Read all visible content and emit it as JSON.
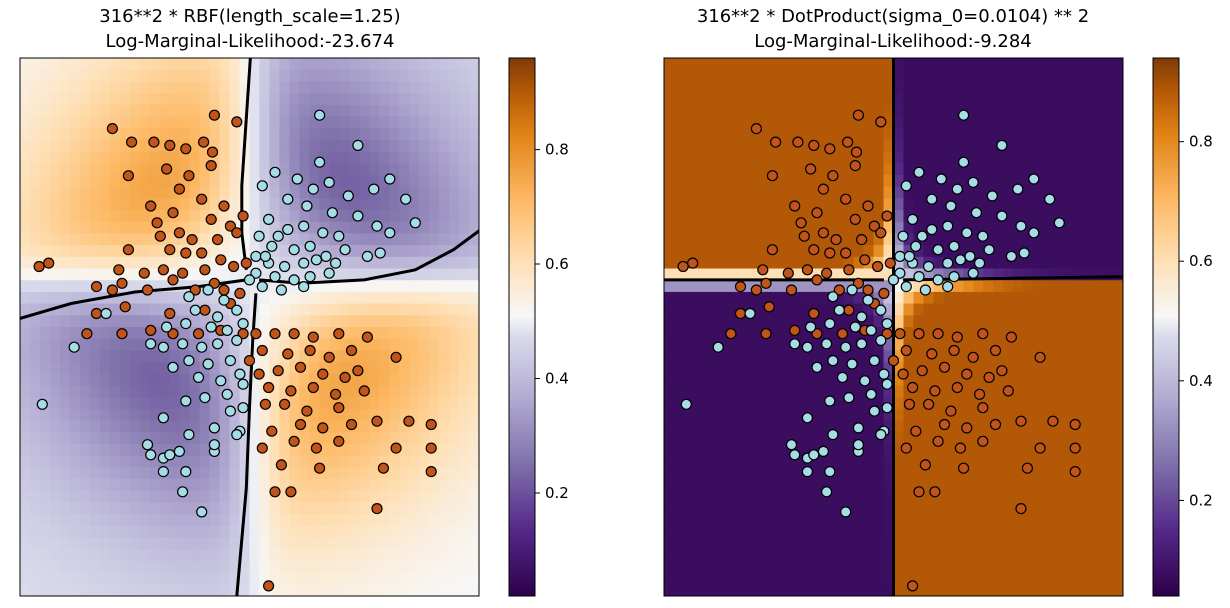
{
  "chart_data": [
    {
      "type": "heatmap",
      "panel": "left",
      "title_line1": "316**2 * RBF(length_scale=1.25)",
      "title_line2": "Log-Marginal-Likelihood:-23.674",
      "kernel": "rbf",
      "grid": false,
      "colorbar": {
        "range": [
          0.02,
          0.96
        ],
        "ticks": [
          0.2,
          0.4,
          0.6,
          0.8
        ],
        "tick_labels": [
          "0.2",
          "0.4",
          "0.6",
          "0.8"
        ]
      },
      "decision_boundary": 0.5,
      "colors": {
        "low": "#2d004b",
        "mid": "#f7f7f7",
        "high": "#7f3b08",
        "class_0_point": "#a6dce6",
        "class_1_point": "#c0541a",
        "boundary": "#000000"
      }
    },
    {
      "type": "heatmap",
      "panel": "right",
      "title_line1": "316**2 * DotProduct(sigma_0=0.0104) ** 2",
      "title_line2": "Log-Marginal-Likelihood:-9.284",
      "kernel": "dotproduct_squared",
      "grid": false,
      "colorbar": {
        "range": [
          0.04,
          0.94
        ],
        "ticks": [
          0.2,
          0.4,
          0.6,
          0.8
        ],
        "tick_labels": [
          "0.2",
          "0.4",
          "0.6",
          "0.8"
        ]
      },
      "decision_boundary": 0.5,
      "colors": {
        "low": "#2d004b",
        "mid": "#f7f7f7",
        "high": "#7f3b08",
        "class_0_point": "#a6dce6",
        "class_1_point": "#c0541a",
        "boundary": "#000000"
      }
    }
  ],
  "points": [
    [
      -2.15,
      2.35,
      1
    ],
    [
      -1.85,
      2.15,
      1
    ],
    [
      -1.5,
      2.15,
      1
    ],
    [
      -1.25,
      2.1,
      1
    ],
    [
      -1.0,
      2.05,
      1
    ],
    [
      -0.72,
      2.15,
      1
    ],
    [
      -0.58,
      2.0,
      1
    ],
    [
      -1.9,
      1.65,
      1
    ],
    [
      -1.3,
      1.75,
      1
    ],
    [
      -0.95,
      1.65,
      1
    ],
    [
      -0.6,
      1.8,
      1
    ],
    [
      -1.1,
      1.45,
      1
    ],
    [
      -0.75,
      1.3,
      1
    ],
    [
      -0.4,
      1.2,
      1
    ],
    [
      -1.55,
      1.2,
      1
    ],
    [
      -1.2,
      1.1,
      1
    ],
    [
      -1.45,
      0.95,
      1
    ],
    [
      -0.6,
      1.0,
      1
    ],
    [
      -0.3,
      0.9,
      1
    ],
    [
      -0.1,
      1.05,
      1
    ],
    [
      -1.4,
      0.75,
      1
    ],
    [
      -1.1,
      0.8,
      1
    ],
    [
      -0.9,
      0.7,
      1
    ],
    [
      -0.5,
      0.7,
      1
    ],
    [
      -0.2,
      0.8,
      1
    ],
    [
      -1.9,
      0.55,
      1
    ],
    [
      -1.25,
      0.55,
      1
    ],
    [
      -1.0,
      0.5,
      1
    ],
    [
      -0.75,
      0.5,
      1
    ],
    [
      -0.45,
      0.4,
      1
    ],
    [
      -3.3,
      0.3,
      1
    ],
    [
      -3.15,
      0.35,
      1
    ],
    [
      -2.05,
      0.25,
      1
    ],
    [
      -1.65,
      0.2,
      1
    ],
    [
      -1.35,
      0.25,
      1
    ],
    [
      -1.05,
      0.2,
      1
    ],
    [
      -0.7,
      0.25,
      1
    ],
    [
      -0.25,
      0.3,
      1
    ],
    [
      -2.4,
      0.0,
      1
    ],
    [
      -2.15,
      -0.05,
      1
    ],
    [
      -2.0,
      0.05,
      1
    ],
    [
      -1.6,
      -0.05,
      1
    ],
    [
      -1.2,
      0.1,
      1
    ],
    [
      -0.85,
      -0.05,
      1
    ],
    [
      -0.55,
      0.05,
      1
    ],
    [
      -0.15,
      -0.1,
      1
    ],
    [
      -2.4,
      -0.4,
      1
    ],
    [
      -1.95,
      -0.3,
      1
    ],
    [
      -1.25,
      -0.4,
      1
    ],
    [
      -0.7,
      -0.35,
      1
    ],
    [
      -0.3,
      -0.25,
      1
    ],
    [
      -2.55,
      -0.7,
      1
    ],
    [
      -2.0,
      -0.7,
      1
    ],
    [
      -1.55,
      -0.65,
      1
    ],
    [
      -1.2,
      -0.7,
      1
    ],
    [
      -0.8,
      -0.7,
      1
    ],
    [
      -0.45,
      -0.65,
      1
    ],
    [
      -0.1,
      -0.7,
      1
    ],
    [
      -0.05,
      0.35,
      1
    ],
    [
      -0.4,
      -0.05,
      1
    ],
    [
      0.1,
      -0.7,
      1
    ],
    [
      0.4,
      -0.7,
      1
    ],
    [
      0.7,
      -0.7,
      1
    ],
    [
      1.0,
      -0.75,
      1
    ],
    [
      1.4,
      -0.7,
      1
    ],
    [
      1.85,
      -0.75,
      1
    ],
    [
      0.2,
      -0.95,
      1
    ],
    [
      0.6,
      -1.0,
      1
    ],
    [
      0.95,
      -0.95,
      1
    ],
    [
      1.25,
      -1.05,
      1
    ],
    [
      1.6,
      -0.95,
      1
    ],
    [
      2.3,
      -1.05,
      1
    ],
    [
      0.15,
      -1.3,
      1
    ],
    [
      0.45,
      -1.25,
      1
    ],
    [
      0.8,
      -1.2,
      1
    ],
    [
      1.15,
      -1.3,
      1
    ],
    [
      1.5,
      -1.35,
      1
    ],
    [
      0.3,
      -1.5,
      1
    ],
    [
      0.65,
      -1.55,
      1
    ],
    [
      1.0,
      -1.5,
      1
    ],
    [
      1.35,
      -1.6,
      1
    ],
    [
      1.8,
      -1.55,
      1
    ],
    [
      0.55,
      -1.75,
      1
    ],
    [
      0.9,
      -1.85,
      1
    ],
    [
      1.4,
      -1.8,
      1
    ],
    [
      0.8,
      -2.05,
      1
    ],
    [
      1.15,
      -2.1,
      1
    ],
    [
      1.6,
      -2.05,
      1
    ],
    [
      2.0,
      -2.0,
      1
    ],
    [
      2.5,
      -2.0,
      1
    ],
    [
      2.85,
      -2.05,
      1
    ],
    [
      0.35,
      -2.15,
      1
    ],
    [
      0.7,
      -2.3,
      1
    ],
    [
      1.05,
      -2.4,
      1
    ],
    [
      1.4,
      -2.3,
      1
    ],
    [
      2.3,
      -2.4,
      1
    ],
    [
      2.85,
      -2.4,
      1
    ],
    [
      0.5,
      -2.65,
      1
    ],
    [
      1.1,
      -2.7,
      1
    ],
    [
      2.1,
      -2.7,
      1
    ],
    [
      2.85,
      -2.75,
      1
    ],
    [
      0.4,
      -3.05,
      1
    ],
    [
      0.65,
      -3.05,
      1
    ],
    [
      2.0,
      -3.3,
      1
    ],
    [
      0.3,
      -4.45,
      1
    ],
    [
      0.0,
      -1.1,
      1
    ],
    [
      0.25,
      -1.75,
      1
    ],
    [
      1.7,
      -1.25,
      1
    ],
    [
      0.2,
      -2.4,
      1
    ],
    [
      -0.55,
      2.55,
      1
    ],
    [
      -0.2,
      2.45,
      1
    ],
    [
      1.1,
      2.55,
      0
    ],
    [
      1.7,
      2.1,
      0
    ],
    [
      1.1,
      1.85,
      0
    ],
    [
      0.4,
      1.7,
      0
    ],
    [
      0.75,
      1.6,
      0
    ],
    [
      1.0,
      1.45,
      0
    ],
    [
      1.25,
      1.55,
      0
    ],
    [
      1.55,
      1.35,
      0
    ],
    [
      1.95,
      1.45,
      0
    ],
    [
      2.2,
      1.6,
      0
    ],
    [
      2.45,
      1.3,
      0
    ],
    [
      0.2,
      1.5,
      0
    ],
    [
      0.6,
      1.3,
      0
    ],
    [
      0.9,
      1.2,
      0
    ],
    [
      1.3,
      1.1,
      0
    ],
    [
      1.7,
      1.05,
      0
    ],
    [
      2.0,
      0.9,
      0
    ],
    [
      2.6,
      0.95,
      0
    ],
    [
      0.3,
      1.0,
      0
    ],
    [
      0.6,
      0.85,
      0
    ],
    [
      0.85,
      0.9,
      0
    ],
    [
      1.15,
      0.8,
      0
    ],
    [
      1.4,
      0.75,
      0
    ],
    [
      2.2,
      0.8,
      0
    ],
    [
      0.15,
      0.75,
      0
    ],
    [
      0.35,
      0.6,
      0
    ],
    [
      0.45,
      0.75,
      0
    ],
    [
      0.7,
      0.55,
      0
    ],
    [
      0.95,
      0.6,
      0
    ],
    [
      1.2,
      0.45,
      0
    ],
    [
      1.5,
      0.55,
      0
    ],
    [
      1.85,
      0.45,
      0
    ],
    [
      2.05,
      0.5,
      0
    ],
    [
      0.1,
      0.45,
      0
    ],
    [
      0.3,
      0.35,
      0
    ],
    [
      0.55,
      0.3,
      0
    ],
    [
      0.85,
      0.35,
      0
    ],
    [
      1.05,
      0.4,
      0
    ],
    [
      1.35,
      0.35,
      0
    ],
    [
      0.1,
      0.2,
      0
    ],
    [
      0.4,
      0.15,
      0
    ],
    [
      0.7,
      0.1,
      0
    ],
    [
      0.95,
      0.15,
      0
    ],
    [
      1.25,
      0.2,
      0
    ],
    [
      0.2,
      0.0,
      0
    ],
    [
      0.5,
      -0.05,
      0
    ],
    [
      0.85,
      0.0,
      0
    ],
    [
      0.0,
      0.1,
      0
    ],
    [
      0.25,
      0.45,
      0
    ],
    [
      -0.4,
      -0.2,
      0
    ],
    [
      -0.65,
      -0.05,
      0
    ],
    [
      -0.95,
      -0.15,
      0
    ],
    [
      -0.2,
      -0.35,
      0
    ],
    [
      -0.5,
      -0.45,
      0
    ],
    [
      -0.85,
      -0.35,
      0
    ],
    [
      -0.1,
      -0.55,
      0
    ],
    [
      -0.35,
      -0.65,
      0
    ],
    [
      -0.6,
      -0.6,
      0
    ],
    [
      -1.0,
      -0.55,
      0
    ],
    [
      -1.3,
      -0.6,
      0
    ],
    [
      -0.2,
      -0.8,
      0
    ],
    [
      -0.5,
      -0.85,
      0
    ],
    [
      -0.75,
      -0.9,
      0
    ],
    [
      -1.05,
      -0.85,
      0
    ],
    [
      -1.35,
      -0.9,
      0
    ],
    [
      -1.55,
      -0.85,
      0
    ],
    [
      -0.3,
      -1.1,
      0
    ],
    [
      -0.65,
      -1.15,
      0
    ],
    [
      -0.95,
      -1.1,
      0
    ],
    [
      -1.2,
      -1.2,
      0
    ],
    [
      -0.15,
      -1.3,
      0
    ],
    [
      -0.45,
      -1.4,
      0
    ],
    [
      -0.8,
      -1.35,
      0
    ],
    [
      -0.35,
      -1.6,
      0
    ],
    [
      -0.7,
      -1.65,
      0
    ],
    [
      -1.0,
      -1.7,
      0
    ],
    [
      -0.1,
      -1.8,
      0
    ],
    [
      -1.35,
      -1.95,
      0
    ],
    [
      -0.55,
      -2.1,
      0
    ],
    [
      -0.95,
      -2.2,
      0
    ],
    [
      -0.15,
      -2.15,
      0
    ],
    [
      -2.25,
      -0.4,
      0
    ],
    [
      -2.75,
      -0.9,
      0
    ],
    [
      -3.25,
      -1.75,
      0
    ],
    [
      -1.6,
      -2.35,
      0
    ],
    [
      -1.35,
      -2.55,
      0
    ],
    [
      -1.1,
      -2.45,
      0
    ],
    [
      -0.55,
      -2.45,
      0
    ],
    [
      -1.25,
      -2.5,
      0
    ],
    [
      -1.0,
      -2.75,
      0
    ],
    [
      -1.05,
      -3.05,
      0
    ],
    [
      -0.75,
      -3.35,
      0
    ],
    [
      -0.55,
      -2.35,
      0
    ],
    [
      -0.2,
      -2.2,
      0
    ],
    [
      -0.3,
      -1.85,
      0
    ],
    [
      -1.35,
      -2.75,
      0
    ],
    [
      -1.55,
      -2.5,
      0
    ],
    [
      -0.1,
      -1.45,
      0
    ]
  ]
}
